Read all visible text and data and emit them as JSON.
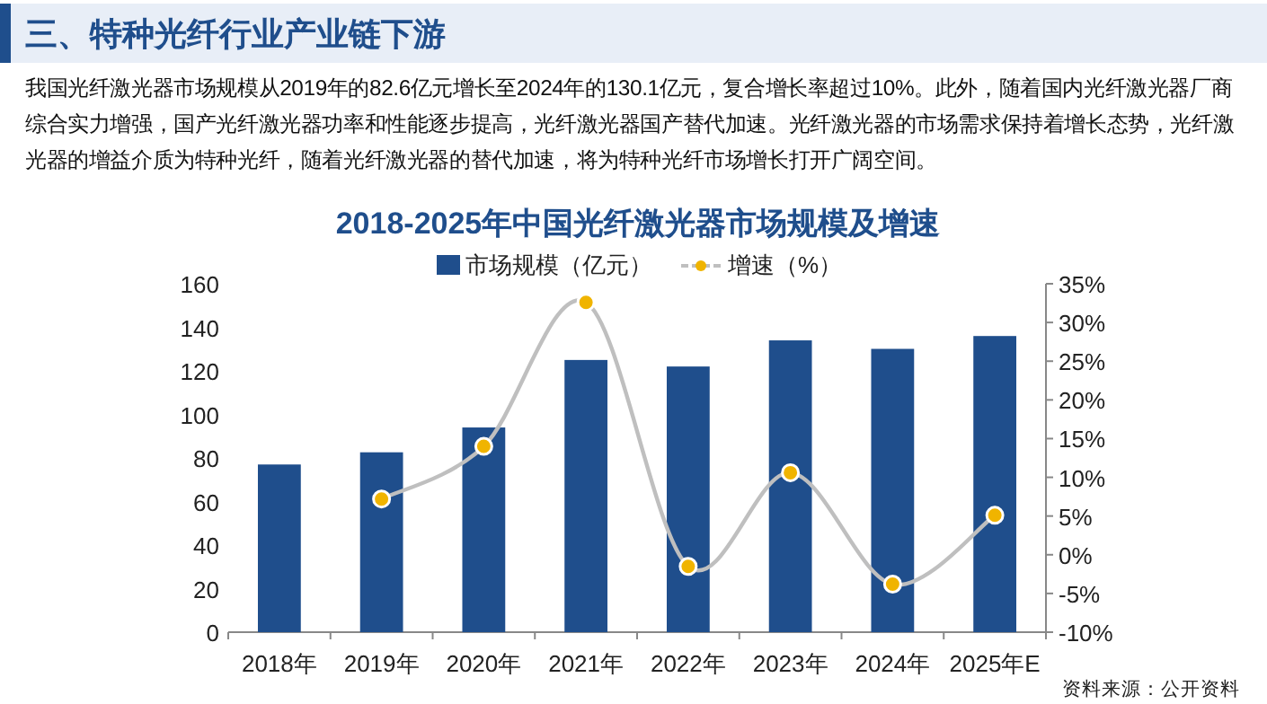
{
  "chart_data": {
    "type": "bar",
    "title": "2018-2025年中国光纤激光器市场规模及增速",
    "annotations": [
      "三、特种光纤行业产业链下游",
      "我国光纤激光器市场规模从2019年的82.6亿元增长至2024年的130.1亿元，复合增长率超过10%。此外，随着国内光纤激光器厂商综合实力增强，国产光纤激光器功率和性能逐步提高，光纤激光器国产替代加速。光纤激光器的市场需求保持着增长态势，光纤激光器的增益介质为特种光纤，随着光纤激光器的替代加速，将为特种光纤市场增长打开广阔空间。",
      "资料来源：公开资料"
    ],
    "categories": [
      "2018年",
      "2019年",
      "2020年",
      "2021年",
      "2022年",
      "2023年",
      "2024年",
      "2025年E"
    ],
    "series": [
      {
        "name": "市场规模（亿元）",
        "color": "#1f4e8c",
        "values": [
          77,
          82.6,
          94,
          125,
          122,
          134,
          130.1,
          136
        ]
      },
      {
        "name": "增速（%）",
        "type": "line",
        "axis": "y2",
        "color": "#bfbfbf",
        "marker": "circle",
        "values": [
          null,
          7.2,
          14.0,
          32.6,
          -1.5,
          10.6,
          -3.8,
          5.1
        ]
      }
    ],
    "ylim": [
      0,
      160
    ],
    "yticks": [
      0,
      20,
      40,
      60,
      80,
      100,
      120,
      140,
      160
    ],
    "y2lim": [
      -10,
      35
    ],
    "y2ticks": [
      {
        "value": -10,
        "label": "-10%"
      },
      {
        "value": -5,
        "label": "-5%"
      },
      {
        "value": 0,
        "label": "0%"
      },
      {
        "value": 5,
        "label": "5%"
      },
      {
        "value": 10,
        "label": "10%"
      },
      {
        "value": 15,
        "label": "15%"
      },
      {
        "value": 20,
        "label": "20%"
      },
      {
        "value": 25,
        "label": "25%"
      },
      {
        "value": 30,
        "label": "30%"
      },
      {
        "value": 35,
        "label": "35%"
      }
    ],
    "legend": "top"
  }
}
